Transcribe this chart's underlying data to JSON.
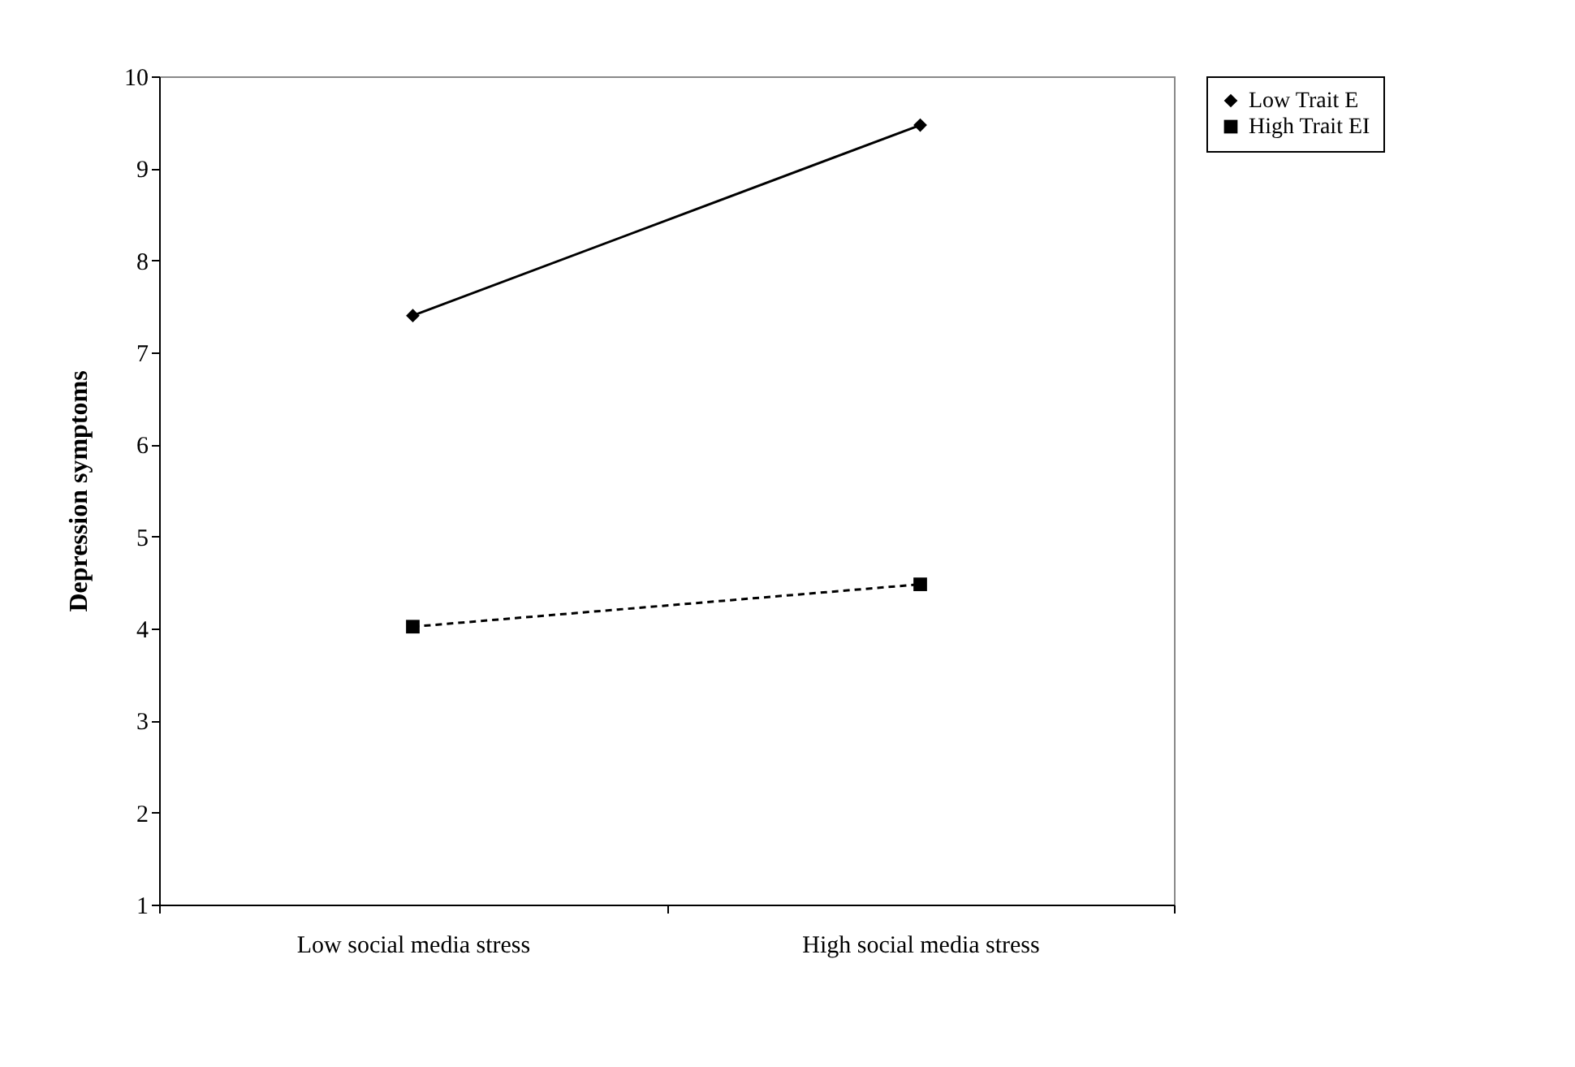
{
  "chart_data": {
    "type": "line",
    "ylabel": "Depression symptoms",
    "categories": [
      "Low social media stress",
      "High social media stress"
    ],
    "series": [
      {
        "name": "Low Trait E",
        "color": "#000000",
        "values": [
          7.4,
          9.47
        ],
        "marker": "diamond",
        "line_style": "solid"
      },
      {
        "name": "High Trait EI",
        "color": "#000000",
        "values": [
          4.02,
          4.48
        ],
        "marker": "square",
        "line_style": "dashed"
      }
    ],
    "ylim": [
      1,
      10
    ],
    "yticks": [
      1,
      2,
      3,
      4,
      5,
      6,
      7,
      8,
      9,
      10
    ],
    "grid": false,
    "legend": "right"
  }
}
